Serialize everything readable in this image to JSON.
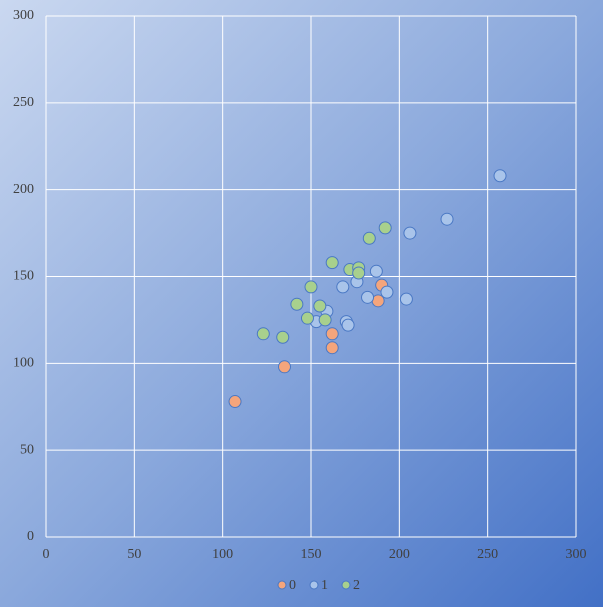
{
  "chart_data": {
    "type": "scatter",
    "xlim": [
      0,
      300
    ],
    "xticks": [
      0,
      50,
      100,
      150,
      200,
      250,
      300
    ],
    "ylim": [
      0,
      300
    ],
    "yticks": [
      0,
      50,
      100,
      150,
      200,
      250,
      300
    ],
    "grid": true,
    "legend": "bottom",
    "series": [
      {
        "name": "0",
        "color": "#f4a57c",
        "x": [
          107,
          135,
          162,
          162,
          188,
          190
        ],
        "values": [
          78,
          98,
          109,
          117,
          136,
          145
        ]
      },
      {
        "name": "1",
        "color": "#a9c4ea",
        "x": [
          257,
          227,
          206,
          204,
          193,
          187,
          182,
          176,
          168,
          159,
          153,
          170,
          171
        ],
        "values": [
          208,
          183,
          175,
          137,
          141,
          153,
          138,
          147,
          144,
          130,
          124,
          124,
          122
        ]
      },
      {
        "name": "2",
        "color": "#a8d08d",
        "x": [
          192,
          183,
          162,
          172,
          177,
          177,
          150,
          142,
          155,
          148,
          158,
          123,
          134
        ],
        "values": [
          178,
          172,
          158,
          154,
          155,
          152,
          144,
          134,
          133,
          126,
          125,
          117,
          115
        ]
      }
    ]
  }
}
